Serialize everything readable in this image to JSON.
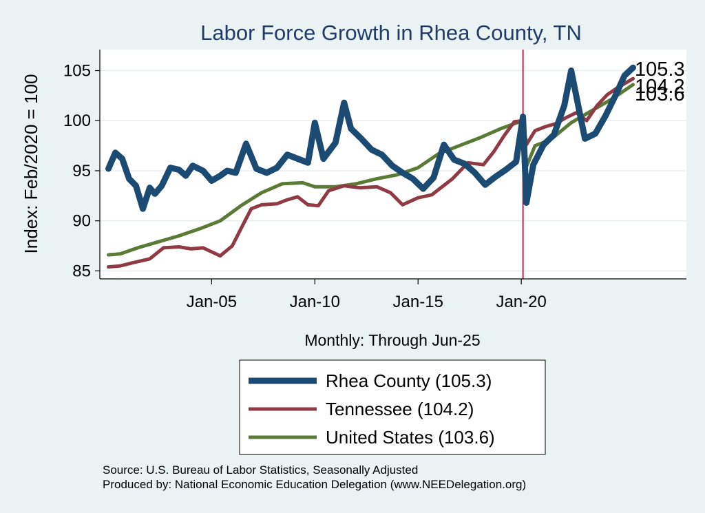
{
  "chart_data": {
    "type": "line",
    "title": "Labor Force Growth in Rhea  County, TN",
    "xlabel": "Monthly: Through Jun-25",
    "ylabel": "Index: Feb/2020 = 100",
    "xlim": [
      "1999-08",
      "2028-01"
    ],
    "ylim": [
      84.2,
      107.1
    ],
    "y_ticks": [
      85,
      90,
      95,
      100,
      105
    ],
    "x_ticks": [
      {
        "date": "2005-01",
        "label": "Jan-05"
      },
      {
        "date": "2010-01",
        "label": "Jan-10"
      },
      {
        "date": "2015-01",
        "label": "Jan-15"
      },
      {
        "date": "2020-01",
        "label": "Jan-20"
      }
    ],
    "reference_line": {
      "date": "2020-02",
      "color": "#c0234e"
    },
    "grid": true,
    "legend_position": "bottom",
    "series": [
      {
        "name": "Rhea  County (105.3)",
        "end_label": "105.3",
        "color": "#1b4a72",
        "width": 9,
        "points": [
          [
            "2000-01",
            95.2
          ],
          [
            "2000-05",
            96.8
          ],
          [
            "2000-09",
            96.2
          ],
          [
            "2001-01",
            94.2
          ],
          [
            "2001-05",
            93.5
          ],
          [
            "2001-09",
            91.2
          ],
          [
            "2002-01",
            93.3
          ],
          [
            "2002-04",
            92.7
          ],
          [
            "2002-08",
            93.5
          ],
          [
            "2003-01",
            95.3
          ],
          [
            "2003-06",
            95.1
          ],
          [
            "2003-10",
            94.5
          ],
          [
            "2004-02",
            95.5
          ],
          [
            "2004-08",
            95.0
          ],
          [
            "2005-01",
            94.0
          ],
          [
            "2005-06",
            94.5
          ],
          [
            "2005-10",
            95.0
          ],
          [
            "2006-03",
            94.8
          ],
          [
            "2006-09",
            97.7
          ],
          [
            "2007-03",
            95.2
          ],
          [
            "2007-09",
            94.8
          ],
          [
            "2008-03",
            95.3
          ],
          [
            "2008-09",
            96.6
          ],
          [
            "2009-03",
            96.2
          ],
          [
            "2009-09",
            95.8
          ],
          [
            "2010-01",
            99.8
          ],
          [
            "2010-06",
            96.2
          ],
          [
            "2011-01",
            97.8
          ],
          [
            "2011-06",
            101.8
          ],
          [
            "2011-10",
            99.2
          ],
          [
            "2012-04",
            98.2
          ],
          [
            "2012-10",
            97.1
          ],
          [
            "2013-04",
            96.6
          ],
          [
            "2013-10",
            95.5
          ],
          [
            "2014-04",
            94.8
          ],
          [
            "2014-10",
            94.2
          ],
          [
            "2015-04",
            93.2
          ],
          [
            "2015-10",
            94.3
          ],
          [
            "2016-04",
            97.6
          ],
          [
            "2016-10",
            96.1
          ],
          [
            "2017-04",
            95.7
          ],
          [
            "2017-10",
            94.8
          ],
          [
            "2018-04",
            93.6
          ],
          [
            "2018-10",
            94.4
          ],
          [
            "2019-04",
            95.1
          ],
          [
            "2019-10",
            95.9
          ],
          [
            "2020-02",
            100.4
          ],
          [
            "2020-04",
            91.8
          ],
          [
            "2020-08",
            95.6
          ],
          [
            "2021-02",
            97.6
          ],
          [
            "2021-08",
            98.6
          ],
          [
            "2022-02",
            101.5
          ],
          [
            "2022-06",
            105.0
          ],
          [
            "2022-10",
            101.6
          ],
          [
            "2023-02",
            98.2
          ],
          [
            "2023-08",
            98.7
          ],
          [
            "2024-02",
            100.5
          ],
          [
            "2024-08",
            102.6
          ],
          [
            "2025-01",
            104.5
          ],
          [
            "2025-06",
            105.3
          ]
        ]
      },
      {
        "name": "Tennessee (104.2)",
        "end_label": "104.2",
        "color": "#8f3a45",
        "width": 5,
        "points": [
          [
            "2000-01",
            85.4
          ],
          [
            "2000-08",
            85.5
          ],
          [
            "2001-03",
            85.8
          ],
          [
            "2002-01",
            86.2
          ],
          [
            "2002-09",
            87.3
          ],
          [
            "2003-06",
            87.4
          ],
          [
            "2004-01",
            87.2
          ],
          [
            "2004-08",
            87.3
          ],
          [
            "2005-06",
            86.5
          ],
          [
            "2006-01",
            87.5
          ],
          [
            "2006-06",
            89.2
          ],
          [
            "2006-12",
            91.2
          ],
          [
            "2007-06",
            91.6
          ],
          [
            "2008-03",
            91.7
          ],
          [
            "2008-09",
            92.1
          ],
          [
            "2009-03",
            92.4
          ],
          [
            "2009-09",
            91.6
          ],
          [
            "2010-03",
            91.5
          ],
          [
            "2010-09",
            93.0
          ],
          [
            "2011-06",
            93.5
          ],
          [
            "2012-03",
            93.3
          ],
          [
            "2013-01",
            93.4
          ],
          [
            "2013-09",
            92.8
          ],
          [
            "2014-04",
            91.6
          ],
          [
            "2015-01",
            92.3
          ],
          [
            "2015-09",
            92.6
          ],
          [
            "2016-09",
            94.2
          ],
          [
            "2017-06",
            95.8
          ],
          [
            "2018-03",
            95.6
          ],
          [
            "2018-09",
            96.9
          ],
          [
            "2019-03",
            98.5
          ],
          [
            "2019-09",
            99.9
          ],
          [
            "2020-02",
            100.0
          ],
          [
            "2020-04",
            97.6
          ],
          [
            "2020-09",
            99.0
          ],
          [
            "2021-03",
            99.4
          ],
          [
            "2021-09",
            99.7
          ],
          [
            "2022-03",
            100.3
          ],
          [
            "2022-09",
            100.8
          ],
          [
            "2023-03",
            100.0
          ],
          [
            "2023-09",
            101.5
          ],
          [
            "2024-03",
            102.6
          ],
          [
            "2024-09",
            103.3
          ],
          [
            "2025-06",
            104.2
          ]
        ]
      },
      {
        "name": "United States (103.6)",
        "end_label": "103.6",
        "color": "#5a7a35",
        "width": 5,
        "points": [
          [
            "2000-01",
            86.6
          ],
          [
            "2000-08",
            86.7
          ],
          [
            "2001-06",
            87.3
          ],
          [
            "2002-06",
            87.9
          ],
          [
            "2003-06",
            88.5
          ],
          [
            "2004-06",
            89.2
          ],
          [
            "2005-06",
            90.0
          ],
          [
            "2006-06",
            91.5
          ],
          [
            "2007-06",
            92.8
          ],
          [
            "2008-06",
            93.7
          ],
          [
            "2009-06",
            93.8
          ],
          [
            "2010-01",
            93.4
          ],
          [
            "2011-01",
            93.4
          ],
          [
            "2012-01",
            93.7
          ],
          [
            "2013-01",
            94.2
          ],
          [
            "2014-01",
            94.6
          ],
          [
            "2015-01",
            95.3
          ],
          [
            "2016-01",
            96.7
          ],
          [
            "2017-01",
            97.5
          ],
          [
            "2018-01",
            98.3
          ],
          [
            "2019-01",
            99.2
          ],
          [
            "2020-02",
            100.0
          ],
          [
            "2020-04",
            95.4
          ],
          [
            "2020-09",
            97.5
          ],
          [
            "2021-06",
            98.1
          ],
          [
            "2022-06",
            99.8
          ],
          [
            "2023-06",
            101.0
          ],
          [
            "2024-06",
            102.2
          ],
          [
            "2025-06",
            103.6
          ]
        ]
      }
    ]
  },
  "source_line_1": "Source: U.S. Bureau of Labor Statistics, Seasonally Adjusted",
  "source_line_2": "Produced by: National Economic Education Delegation (www.NEEDelegation.org)"
}
